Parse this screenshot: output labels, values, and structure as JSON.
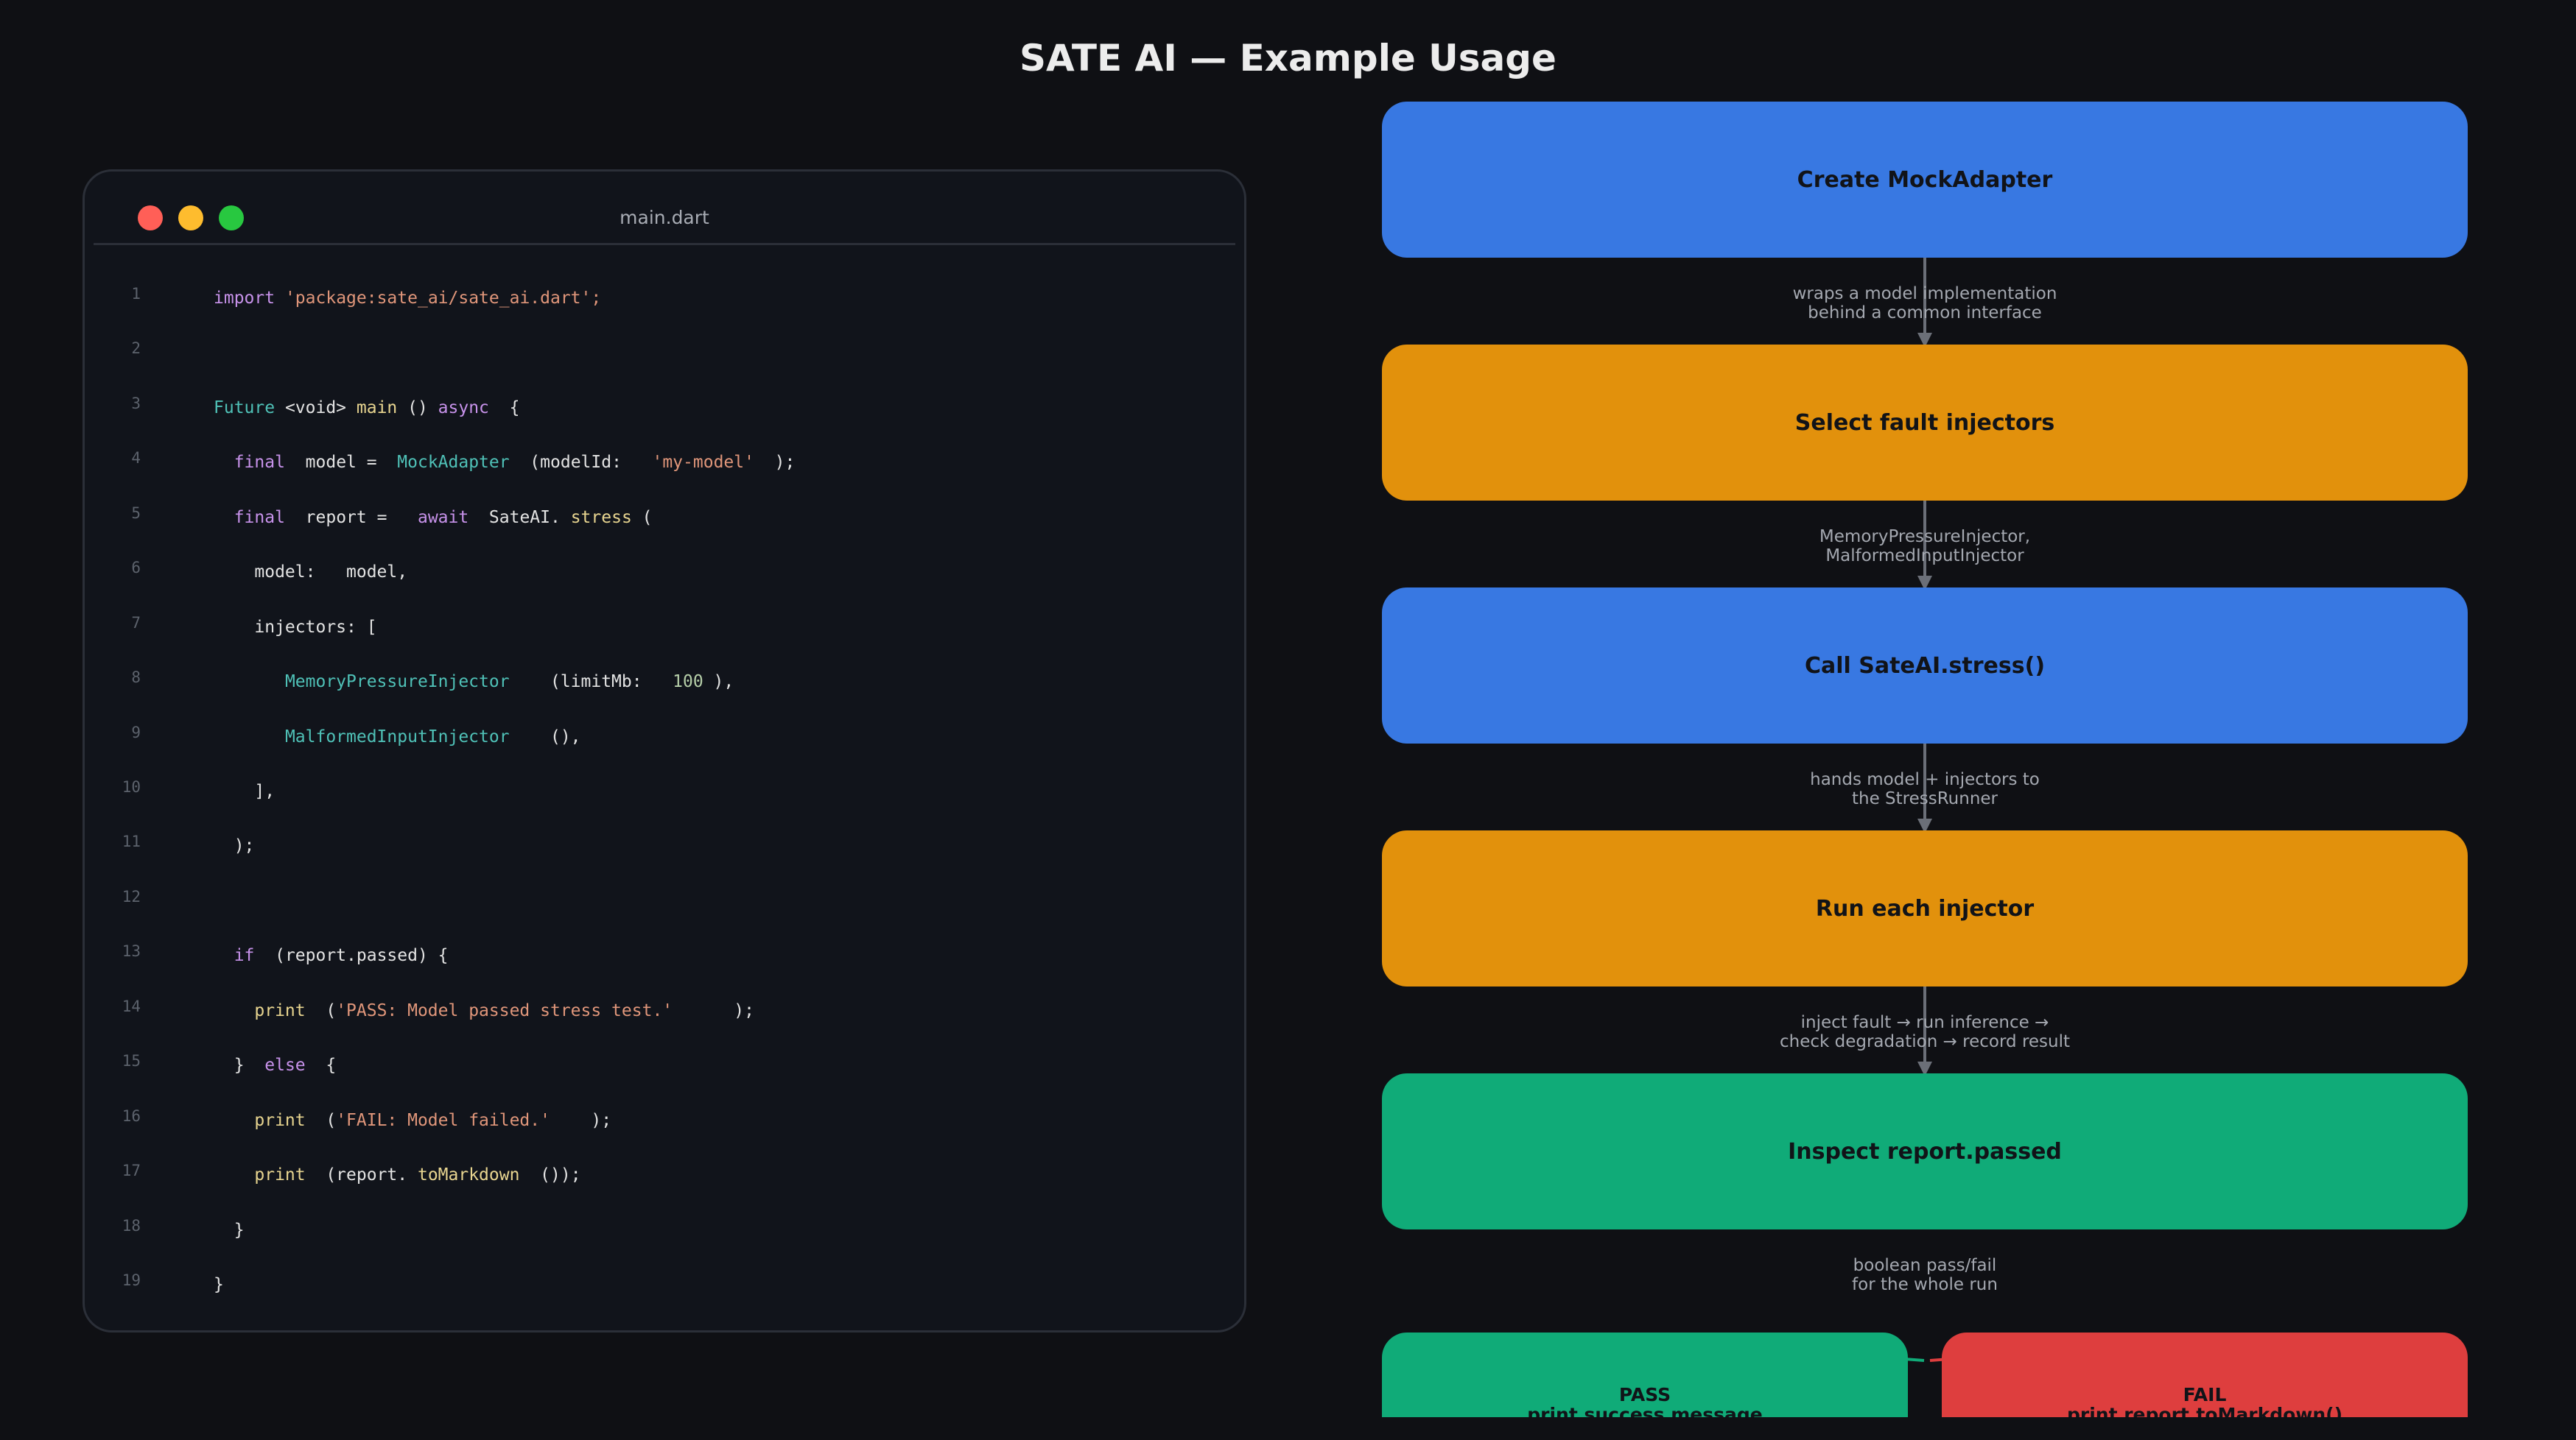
{
  "title": "SATE AI — Example Usage",
  "editor": {
    "filename": "main.dart",
    "lines": [
      {
        "n": "1",
        "tokens": [
          {
            "t": "import",
            "c": "kw"
          },
          {
            "t": " ",
            "c": "plain"
          },
          {
            "t": "'package:sate_ai/sate_ai.dart';",
            "c": "str"
          }
        ]
      },
      {
        "n": "2",
        "tokens": []
      },
      {
        "n": "3",
        "tokens": [
          {
            "t": "Future",
            "c": "ty"
          },
          {
            "t": " <void> ",
            "c": "plain"
          },
          {
            "t": "main",
            "c": "fn"
          },
          {
            "t": " () ",
            "c": "plain"
          },
          {
            "t": "async",
            "c": "kw"
          },
          {
            "t": "  {",
            "c": "plain"
          }
        ]
      },
      {
        "n": "4",
        "tokens": [
          {
            "t": "  ",
            "c": "plain"
          },
          {
            "t": "final",
            "c": "kw"
          },
          {
            "t": "  model =  ",
            "c": "plain"
          },
          {
            "t": "MockAdapter",
            "c": "ty"
          },
          {
            "t": "  (modelId:   ",
            "c": "plain"
          },
          {
            "t": "'my-model'",
            "c": "str"
          },
          {
            "t": "  );",
            "c": "plain"
          }
        ]
      },
      {
        "n": "5",
        "tokens": [
          {
            "t": "  ",
            "c": "plain"
          },
          {
            "t": "final",
            "c": "kw"
          },
          {
            "t": "  report =   ",
            "c": "plain"
          },
          {
            "t": "await",
            "c": "kw"
          },
          {
            "t": "  SateAI. ",
            "c": "plain"
          },
          {
            "t": "stress",
            "c": "fn"
          },
          {
            "t": " (",
            "c": "plain"
          }
        ]
      },
      {
        "n": "6",
        "tokens": [
          {
            "t": "    model:   model,",
            "c": "plain"
          }
        ]
      },
      {
        "n": "7",
        "tokens": [
          {
            "t": "    injectors: [",
            "c": "plain"
          }
        ]
      },
      {
        "n": "8",
        "tokens": [
          {
            "t": "       ",
            "c": "plain"
          },
          {
            "t": "MemoryPressureInjector",
            "c": "ty"
          },
          {
            "t": "    (limitMb:   ",
            "c": "plain"
          },
          {
            "t": "100",
            "c": "num"
          },
          {
            "t": " ),",
            "c": "plain"
          }
        ]
      },
      {
        "n": "9",
        "tokens": [
          {
            "t": "       ",
            "c": "plain"
          },
          {
            "t": "MalformedInputInjector",
            "c": "ty"
          },
          {
            "t": "    (),",
            "c": "plain"
          }
        ]
      },
      {
        "n": "10",
        "tokens": [
          {
            "t": "    ],",
            "c": "plain"
          }
        ]
      },
      {
        "n": "11",
        "tokens": [
          {
            "t": "  );",
            "c": "plain"
          }
        ]
      },
      {
        "n": "12",
        "tokens": []
      },
      {
        "n": "13",
        "tokens": [
          {
            "t": "  ",
            "c": "plain"
          },
          {
            "t": "if",
            "c": "kw"
          },
          {
            "t": "  (report.passed) {",
            "c": "plain"
          }
        ]
      },
      {
        "n": "14",
        "tokens": [
          {
            "t": "    ",
            "c": "plain"
          },
          {
            "t": "print",
            "c": "fn"
          },
          {
            "t": "  (",
            "c": "plain"
          },
          {
            "t": "'PASS: Model passed stress test.'",
            "c": "str"
          },
          {
            "t": "      );",
            "c": "plain"
          }
        ]
      },
      {
        "n": "15",
        "tokens": [
          {
            "t": "  }  ",
            "c": "plain"
          },
          {
            "t": "else",
            "c": "kw"
          },
          {
            "t": "  {",
            "c": "plain"
          }
        ]
      },
      {
        "n": "16",
        "tokens": [
          {
            "t": "    ",
            "c": "plain"
          },
          {
            "t": "print",
            "c": "fn"
          },
          {
            "t": "  (",
            "c": "plain"
          },
          {
            "t": "'FAIL: Model failed.'",
            "c": "str"
          },
          {
            "t": "    );",
            "c": "plain"
          }
        ]
      },
      {
        "n": "17",
        "tokens": [
          {
            "t": "    ",
            "c": "plain"
          },
          {
            "t": "print",
            "c": "fn"
          },
          {
            "t": "  (report. ",
            "c": "plain"
          },
          {
            "t": "toMarkdown",
            "c": "fn"
          },
          {
            "t": "  ());",
            "c": "plain"
          }
        ]
      },
      {
        "n": "18",
        "tokens": [
          {
            "t": "  }",
            "c": "plain"
          }
        ]
      },
      {
        "n": "19",
        "tokens": [
          {
            "t": "}",
            "c": "plain"
          }
        ]
      }
    ]
  },
  "flow": {
    "steps": [
      {
        "label": "Create MockAdapter",
        "color": "blue"
      },
      {
        "label": "Select fault injectors",
        "color": "orange"
      },
      {
        "label": "Call SateAI.stress()",
        "color": "blue"
      },
      {
        "label": "Run each injector",
        "color": "orange"
      },
      {
        "label": "Inspect report.passed",
        "color": "green"
      }
    ],
    "edges": [
      {
        "line1": "wraps a model implementation",
        "line2": "behind a common interface"
      },
      {
        "line1": "MemoryPressureInjector,",
        "line2": "MalformedInputInjector"
      },
      {
        "line1": "hands model + injectors to",
        "line2": "the StressRunner"
      },
      {
        "line1": "inject fault → run inference →",
        "line2": "check degradation → record result"
      },
      {
        "line1": "boolean pass/fail",
        "line2": "for the whole run"
      }
    ],
    "outcomes": {
      "pass": {
        "title": "PASS",
        "detail": "print success message"
      },
      "fail": {
        "title": "FAIL",
        "detail": "print report.toMarkdown()"
      }
    }
  },
  "colors": {
    "blue": "#3878e2",
    "orange": "#e2910c",
    "green": "#10ab78",
    "red": "#de3e3e",
    "connector": "#6b6f78",
    "background": "#0f1014"
  }
}
